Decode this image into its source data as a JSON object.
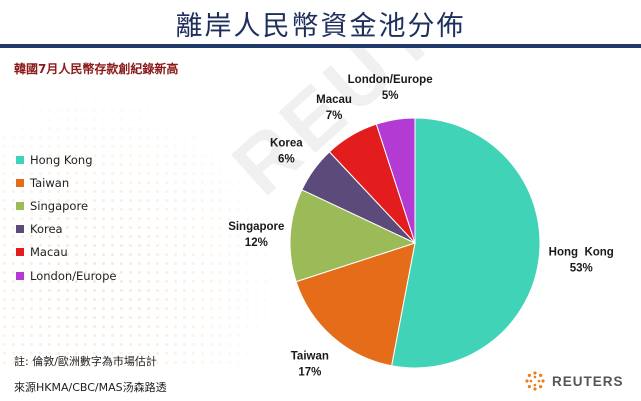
{
  "header": {
    "title": "離岸人民幣資金池分佈",
    "subtitle": "韓國7月人民幣存款創紀錄新高"
  },
  "chart_data": {
    "type": "pie",
    "categories": [
      "Hong Kong",
      "Taiwan",
      "Singapore",
      "Korea",
      "Macau",
      "London/Europe"
    ],
    "values": [
      53,
      17,
      12,
      6,
      7,
      5
    ],
    "data_labels": [
      "53%",
      "17%",
      "12%",
      "6%",
      "7%",
      "5%"
    ],
    "slice_labels": [
      "Hong  Kong",
      "Taiwan",
      "Singapore",
      "Korea",
      "Macau",
      "London/Europe"
    ],
    "legend_labels": [
      "Hong Kong",
      "Taiwan",
      "Singapore",
      "Korea",
      "Macau",
      "London/Europe"
    ],
    "colors": [
      "#40d3b8",
      "#e56d1a",
      "#9bbb59",
      "#5b4a7a",
      "#e31d1d",
      "#b43ad4"
    ],
    "legend_position": "left"
  },
  "footer": {
    "note": "註: 倫敦/歐洲數字為市場估計",
    "source": "來源HKMA/CBC/MAS汤森路透",
    "brand": "REUTERS",
    "watermark": "REUTERS"
  }
}
